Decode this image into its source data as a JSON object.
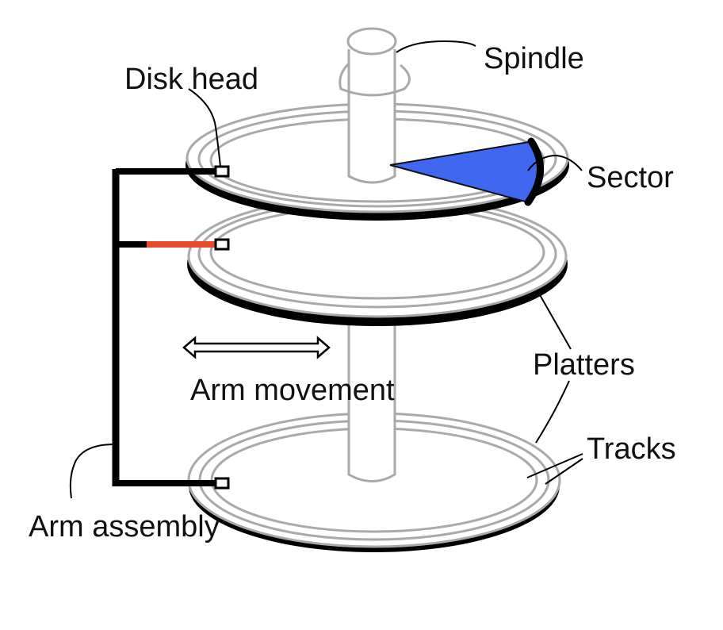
{
  "labels": {
    "spindle": "Spindle",
    "disk_head": "Disk head",
    "sector": "Sector",
    "platters": "Platters",
    "arm_movement": "Arm movement",
    "tracks": "Tracks",
    "arm_assembly": "Arm assembly"
  },
  "colors": {
    "sector_fill": "#3f67f0",
    "active_arm": "#e84a2b",
    "platter_outline": "#a9a9a9",
    "platter_shadow": "#000000",
    "arm": "#000000"
  }
}
